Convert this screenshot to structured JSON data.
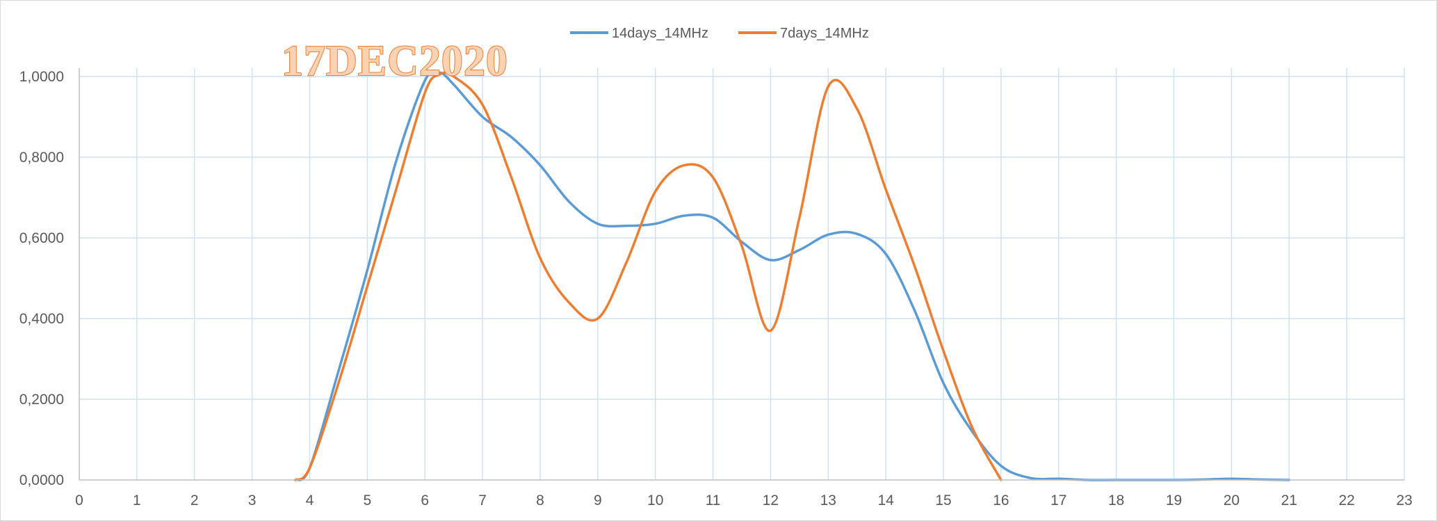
{
  "chart_data": {
    "type": "line",
    "title": "",
    "annotation": "17DEC2020",
    "xlabel": "",
    "ylabel": "",
    "xlim": [
      0,
      23
    ],
    "ylim": [
      0,
      1
    ],
    "x_ticks": [
      "0",
      "1",
      "2",
      "3",
      "4",
      "5",
      "6",
      "7",
      "8",
      "9",
      "10",
      "11",
      "12",
      "13",
      "14",
      "15",
      "16",
      "17",
      "18",
      "19",
      "20",
      "21",
      "22",
      "23"
    ],
    "y_ticks": [
      "0,0000",
      "0,2000",
      "0,4000",
      "0,6000",
      "0,8000",
      "1,0000"
    ],
    "grid": true,
    "legend_position": "top-center",
    "series": [
      {
        "name": "14days_14MHz",
        "color": "#5b9bd5",
        "points": [
          [
            3.75,
            0.0
          ],
          [
            4,
            0.03
          ],
          [
            4.5,
            0.27
          ],
          [
            5,
            0.52
          ],
          [
            5.5,
            0.79
          ],
          [
            6,
            0.99
          ],
          [
            6.25,
            1.01
          ],
          [
            6.5,
            0.98
          ],
          [
            7,
            0.9
          ],
          [
            7.5,
            0.85
          ],
          [
            8,
            0.78
          ],
          [
            8.5,
            0.69
          ],
          [
            9,
            0.635
          ],
          [
            9.5,
            0.63
          ],
          [
            10,
            0.635
          ],
          [
            10.5,
            0.655
          ],
          [
            11,
            0.65
          ],
          [
            11.5,
            0.59
          ],
          [
            12,
            0.545
          ],
          [
            12.5,
            0.57
          ],
          [
            13,
            0.608
          ],
          [
            13.5,
            0.61
          ],
          [
            14,
            0.56
          ],
          [
            14.5,
            0.42
          ],
          [
            15,
            0.24
          ],
          [
            15.5,
            0.12
          ],
          [
            16,
            0.035
          ],
          [
            16.5,
            0.005
          ],
          [
            17,
            0.003
          ],
          [
            17.5,
            0.0
          ],
          [
            18,
            0.0
          ],
          [
            19,
            0.0
          ],
          [
            19.5,
            0.001
          ],
          [
            20,
            0.003
          ],
          [
            20.5,
            0.001
          ],
          [
            21,
            0.0
          ]
        ]
      },
      {
        "name": "7days_14MHz",
        "color": "#ed7d31",
        "points": [
          [
            3.75,
            0.0
          ],
          [
            4,
            0.03
          ],
          [
            4.5,
            0.24
          ],
          [
            5,
            0.48
          ],
          [
            5.5,
            0.72
          ],
          [
            6,
            0.96
          ],
          [
            6.25,
            1.005
          ],
          [
            6.5,
            1.0
          ],
          [
            7,
            0.93
          ],
          [
            7.5,
            0.75
          ],
          [
            8,
            0.55
          ],
          [
            8.5,
            0.44
          ],
          [
            9,
            0.4
          ],
          [
            9.5,
            0.54
          ],
          [
            10,
            0.715
          ],
          [
            10.5,
            0.78
          ],
          [
            11,
            0.75
          ],
          [
            11.5,
            0.58
          ],
          [
            12,
            0.37
          ],
          [
            12.5,
            0.65
          ],
          [
            13,
            0.975
          ],
          [
            13.5,
            0.92
          ],
          [
            14,
            0.72
          ],
          [
            14.5,
            0.53
          ],
          [
            15,
            0.32
          ],
          [
            15.5,
            0.13
          ],
          [
            16,
            0.0
          ]
        ]
      }
    ]
  }
}
